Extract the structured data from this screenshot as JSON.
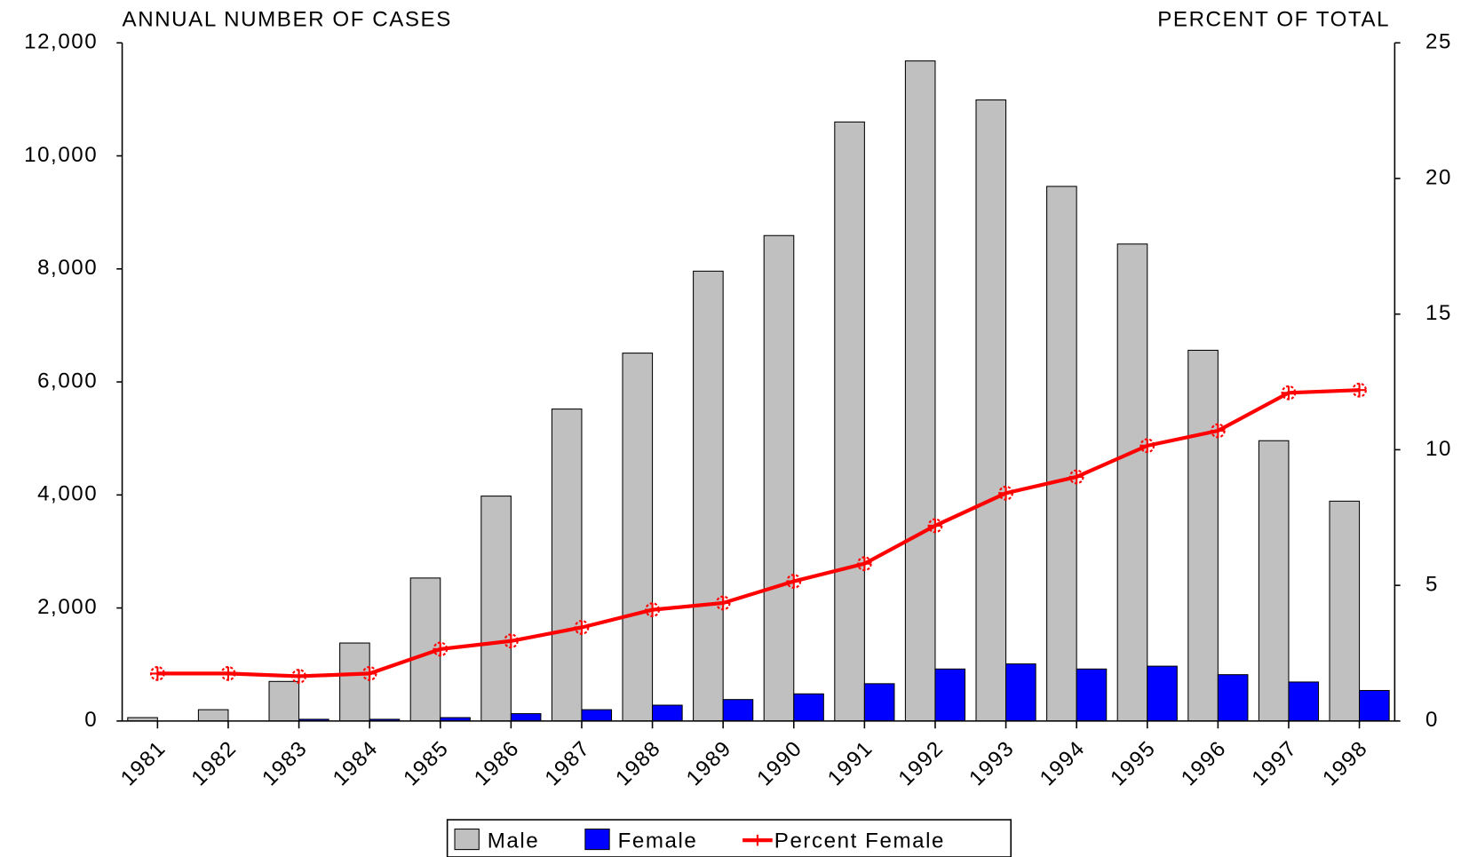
{
  "chart_data": {
    "type": "bar",
    "y_axis_title": "ANNUAL NUMBER OF CASES",
    "y2_axis_title": "PERCENT OF TOTAL",
    "categories": [
      "1981",
      "1982",
      "1983",
      "1984",
      "1985",
      "1986",
      "1987",
      "1988",
      "1989",
      "1990",
      "1991",
      "1992",
      "1993",
      "1994",
      "1995",
      "1996",
      "1997",
      "1998"
    ],
    "series": [
      {
        "name": "Male",
        "color": "#c0c0c0",
        "values": [
          60,
          200,
          700,
          1380,
          2530,
          3980,
          5520,
          6510,
          7960,
          8590,
          10600,
          11680,
          10990,
          9460,
          8440,
          6560,
          4960,
          3890
        ]
      },
      {
        "name": "Female",
        "color": "#0000ff",
        "values": [
          0,
          0,
          30,
          30,
          60,
          130,
          200,
          280,
          380,
          480,
          660,
          920,
          1010,
          920,
          970,
          820,
          690,
          540
        ]
      },
      {
        "name": "Percent Female",
        "color": "#ff0000",
        "type": "line",
        "axis": "y2",
        "values": [
          1.75,
          1.75,
          1.65,
          1.75,
          2.65,
          2.95,
          3.45,
          4.1,
          4.35,
          5.15,
          5.8,
          7.2,
          8.4,
          9.0,
          10.15,
          10.7,
          12.1,
          12.2
        ]
      }
    ],
    "ylim": [
      0,
      12000
    ],
    "yticks": [
      0,
      {
        "value": 2000,
        "label": "2,000"
      },
      {
        "value": 4000,
        "label": "4,000"
      },
      {
        "value": 6000,
        "label": "6,000"
      },
      {
        "value": 8000,
        "label": "8,000"
      },
      {
        "value": 10000,
        "label": "10,000"
      },
      {
        "value": 12000,
        "label": "12,000"
      }
    ],
    "y2lim": [
      0,
      25
    ],
    "y2ticks": [
      0,
      5,
      10,
      15,
      20,
      25
    ],
    "grid": false,
    "legend": "bottom"
  }
}
